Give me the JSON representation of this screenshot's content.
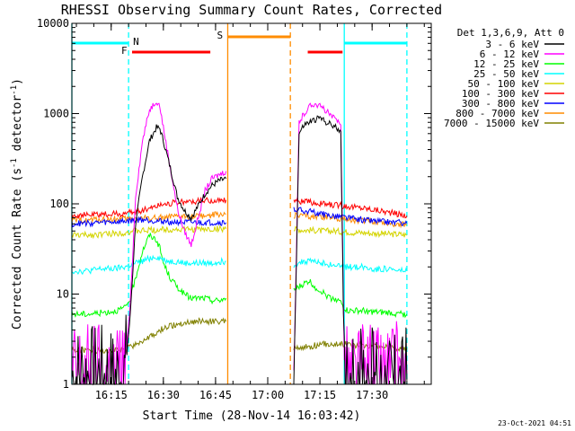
{
  "chart_data": {
    "type": "line",
    "title": "RHESSI Observing Summary Count Rates, Corrected",
    "xlabel": "Start Time (28-Nov-14 16:03:42)",
    "ylabel": "Corrected Count Rate (s",
    "ylabel_sup": "-1",
    "ylabel_mid": " detector",
    "ylabel_sup2": "-1",
    "ylabel_end": ")",
    "y_scale": "log",
    "ylim": [
      1,
      10000
    ],
    "xlim": [
      "16:03:42",
      "17:47:00"
    ],
    "x_ticks": [
      "16:15",
      "16:30",
      "16:45",
      "17:00",
      "17:15",
      "17:30"
    ],
    "y_ticks": [
      "1",
      "10",
      "100",
      "1000",
      "10000"
    ],
    "legend_title": "Det 1,3,6,9, Att 0",
    "legend_position": "top-right",
    "timestamp": "23-Oct-2021 04:51",
    "series": [
      {
        "name": "3 - 6 keV",
        "color": "#000000"
      },
      {
        "name": "6 - 12 keV",
        "color": "#ff00ff"
      },
      {
        "name": "12 - 25 keV",
        "color": "#00ff00"
      },
      {
        "name": "25 - 50 keV",
        "color": "#00ffff"
      },
      {
        "name": "50 - 100 keV",
        "color": "#d4d400"
      },
      {
        "name": "100 - 300 keV",
        "color": "#ff0000"
      },
      {
        "name": "300 - 800 keV",
        "color": "#0000ff"
      },
      {
        "name": "800 - 7000 keV",
        "color": "#ff8c00"
      },
      {
        "name": "7000 - 15000 keV",
        "color": "#808000"
      }
    ],
    "annotations": [
      {
        "label": "N",
        "type": "night",
        "color": "#00ffff",
        "ranges": [
          [
            "16:03:42",
            "16:20:00"
          ],
          [
            "17:22:00",
            "17:40:00"
          ]
        ]
      },
      {
        "label": "F",
        "type": "flare",
        "color": "#ff0000",
        "ranges": [
          [
            "16:21:00",
            "16:43:30"
          ],
          [
            "17:11:30",
            "17:21:30"
          ]
        ]
      },
      {
        "label": "S",
        "type": "saa",
        "color": "#ff8c00",
        "ranges": [
          [
            "16:48:30",
            "17:06:30"
          ]
        ]
      }
    ],
    "data_segments": [
      {
        "x": [
          "16:03:42",
          "16:08:00",
          "16:12:00",
          "16:16:00",
          "16:19:00",
          "16:20:30",
          "16:22:00",
          "16:24:00",
          "16:26:00",
          "16:28:00",
          "16:29:00",
          "16:30:00",
          "16:32:00",
          "16:34:00",
          "16:36:00",
          "16:38:00",
          "16:40:00",
          "16:42:00",
          "16:44:00",
          "16:46:00",
          "16:48:00"
        ],
        "series_values": [
          [
            1.2,
            1.2,
            1.2,
            1.1,
            1.3,
            6,
            60,
            200,
            500,
            700,
            680,
            500,
            250,
            120,
            85,
            70,
            95,
            130,
            160,
            180,
            190
          ],
          [
            1.3,
            1.3,
            1.3,
            1.3,
            1.5,
            8,
            120,
            500,
            1100,
            1400,
            1200,
            700,
            250,
            90,
            50,
            35,
            70,
            140,
            190,
            210,
            230
          ],
          [
            6,
            6,
            6.2,
            6.5,
            7,
            9,
            15,
            30,
            45,
            40,
            32,
            22,
            15,
            12,
            10,
            9,
            9,
            9,
            8.5,
            8.5,
            9
          ],
          [
            18,
            18,
            19,
            19,
            20,
            21,
            22,
            23,
            25,
            26,
            25,
            24,
            23,
            23,
            22,
            22,
            22,
            22,
            22,
            23,
            23
          ],
          [
            45,
            45,
            46,
            47,
            48,
            49,
            50,
            50,
            51,
            51,
            52,
            52,
            52,
            52,
            52,
            52,
            52,
            52,
            52,
            53,
            53
          ],
          [
            75,
            75,
            76,
            77,
            78,
            80,
            82,
            85,
            90,
            95,
            98,
            100,
            102,
            104,
            105,
            106,
            107,
            108,
            108,
            109,
            110
          ],
          [
            60,
            61,
            62,
            63,
            64,
            65,
            66,
            67,
            66,
            65,
            64,
            64,
            63,
            63,
            62,
            62,
            62,
            62,
            62,
            62,
            62
          ],
          [
            65,
            66,
            67,
            67,
            68,
            68,
            69,
            69,
            70,
            70,
            70,
            70,
            71,
            71,
            72,
            72,
            73,
            74,
            75,
            76,
            77
          ],
          [
            2.4,
            2.4,
            2.4,
            2.4,
            2.4,
            2.6,
            2.8,
            3,
            3.3,
            3.6,
            3.9,
            4.2,
            4.4,
            4.6,
            4.8,
            4.9,
            5,
            5,
            5,
            5,
            5
          ]
        ]
      },
      {
        "x": [
          "17:07:30",
          "17:09:00",
          "17:10:30",
          "17:12:00",
          "17:13:30",
          "17:15:00",
          "17:16:30",
          "17:18:00",
          "17:19:30",
          "17:21:00",
          "17:22:00",
          "17:23:00",
          "17:25:00",
          "17:27:30",
          "17:30:00",
          "17:32:30",
          "17:35:00",
          "17:37:30",
          "17:40:00"
        ],
        "series_values": [
          [
            1.1,
            600,
            750,
            800,
            850,
            900,
            820,
            760,
            700,
            650,
            1.2,
            1.1,
            1.1,
            1.1,
            1.1,
            1.1,
            1.1,
            1.1,
            1.1
          ],
          [
            1.1,
            800,
            1000,
            1200,
            1300,
            1200,
            1100,
            950,
            850,
            800,
            2,
            1.3,
            1.3,
            1.3,
            1.3,
            1.3,
            1.3,
            1.3,
            1.3
          ],
          [
            11,
            12,
            13,
            14,
            12,
            11,
            10,
            9,
            9,
            8,
            7,
            6.5,
            6.5,
            6.5,
            6.3,
            6.2,
            6.2,
            6,
            6
          ],
          [
            21,
            22,
            23,
            23,
            23,
            22,
            22,
            21,
            21,
            20,
            20,
            20,
            20,
            20,
            19,
            19,
            19,
            18,
            18
          ],
          [
            52,
            52,
            51,
            51,
            51,
            50,
            50,
            50,
            50,
            49,
            49,
            49,
            48,
            48,
            47,
            47,
            46,
            46,
            45
          ],
          [
            110,
            108,
            105,
            104,
            102,
            100,
            99,
            98,
            97,
            96,
            95,
            94,
            92,
            90,
            87,
            84,
            80,
            77,
            74
          ],
          [
            88,
            86,
            84,
            82,
            80,
            78,
            76,
            75,
            73,
            72,
            71,
            70,
            68,
            66,
            65,
            64,
            63,
            62,
            61
          ],
          [
            75,
            74,
            74,
            73,
            72,
            72,
            71,
            71,
            70,
            69,
            68,
            67,
            66,
            65,
            64,
            63,
            61,
            60,
            59
          ],
          [
            2.5,
            2.5,
            2.6,
            2.6,
            2.7,
            2.7,
            2.8,
            2.8,
            2.8,
            2.8,
            2.8,
            2.8,
            2.7,
            2.7,
            2.7,
            2.6,
            2.6,
            2.5,
            2.5
          ]
        ]
      }
    ]
  }
}
